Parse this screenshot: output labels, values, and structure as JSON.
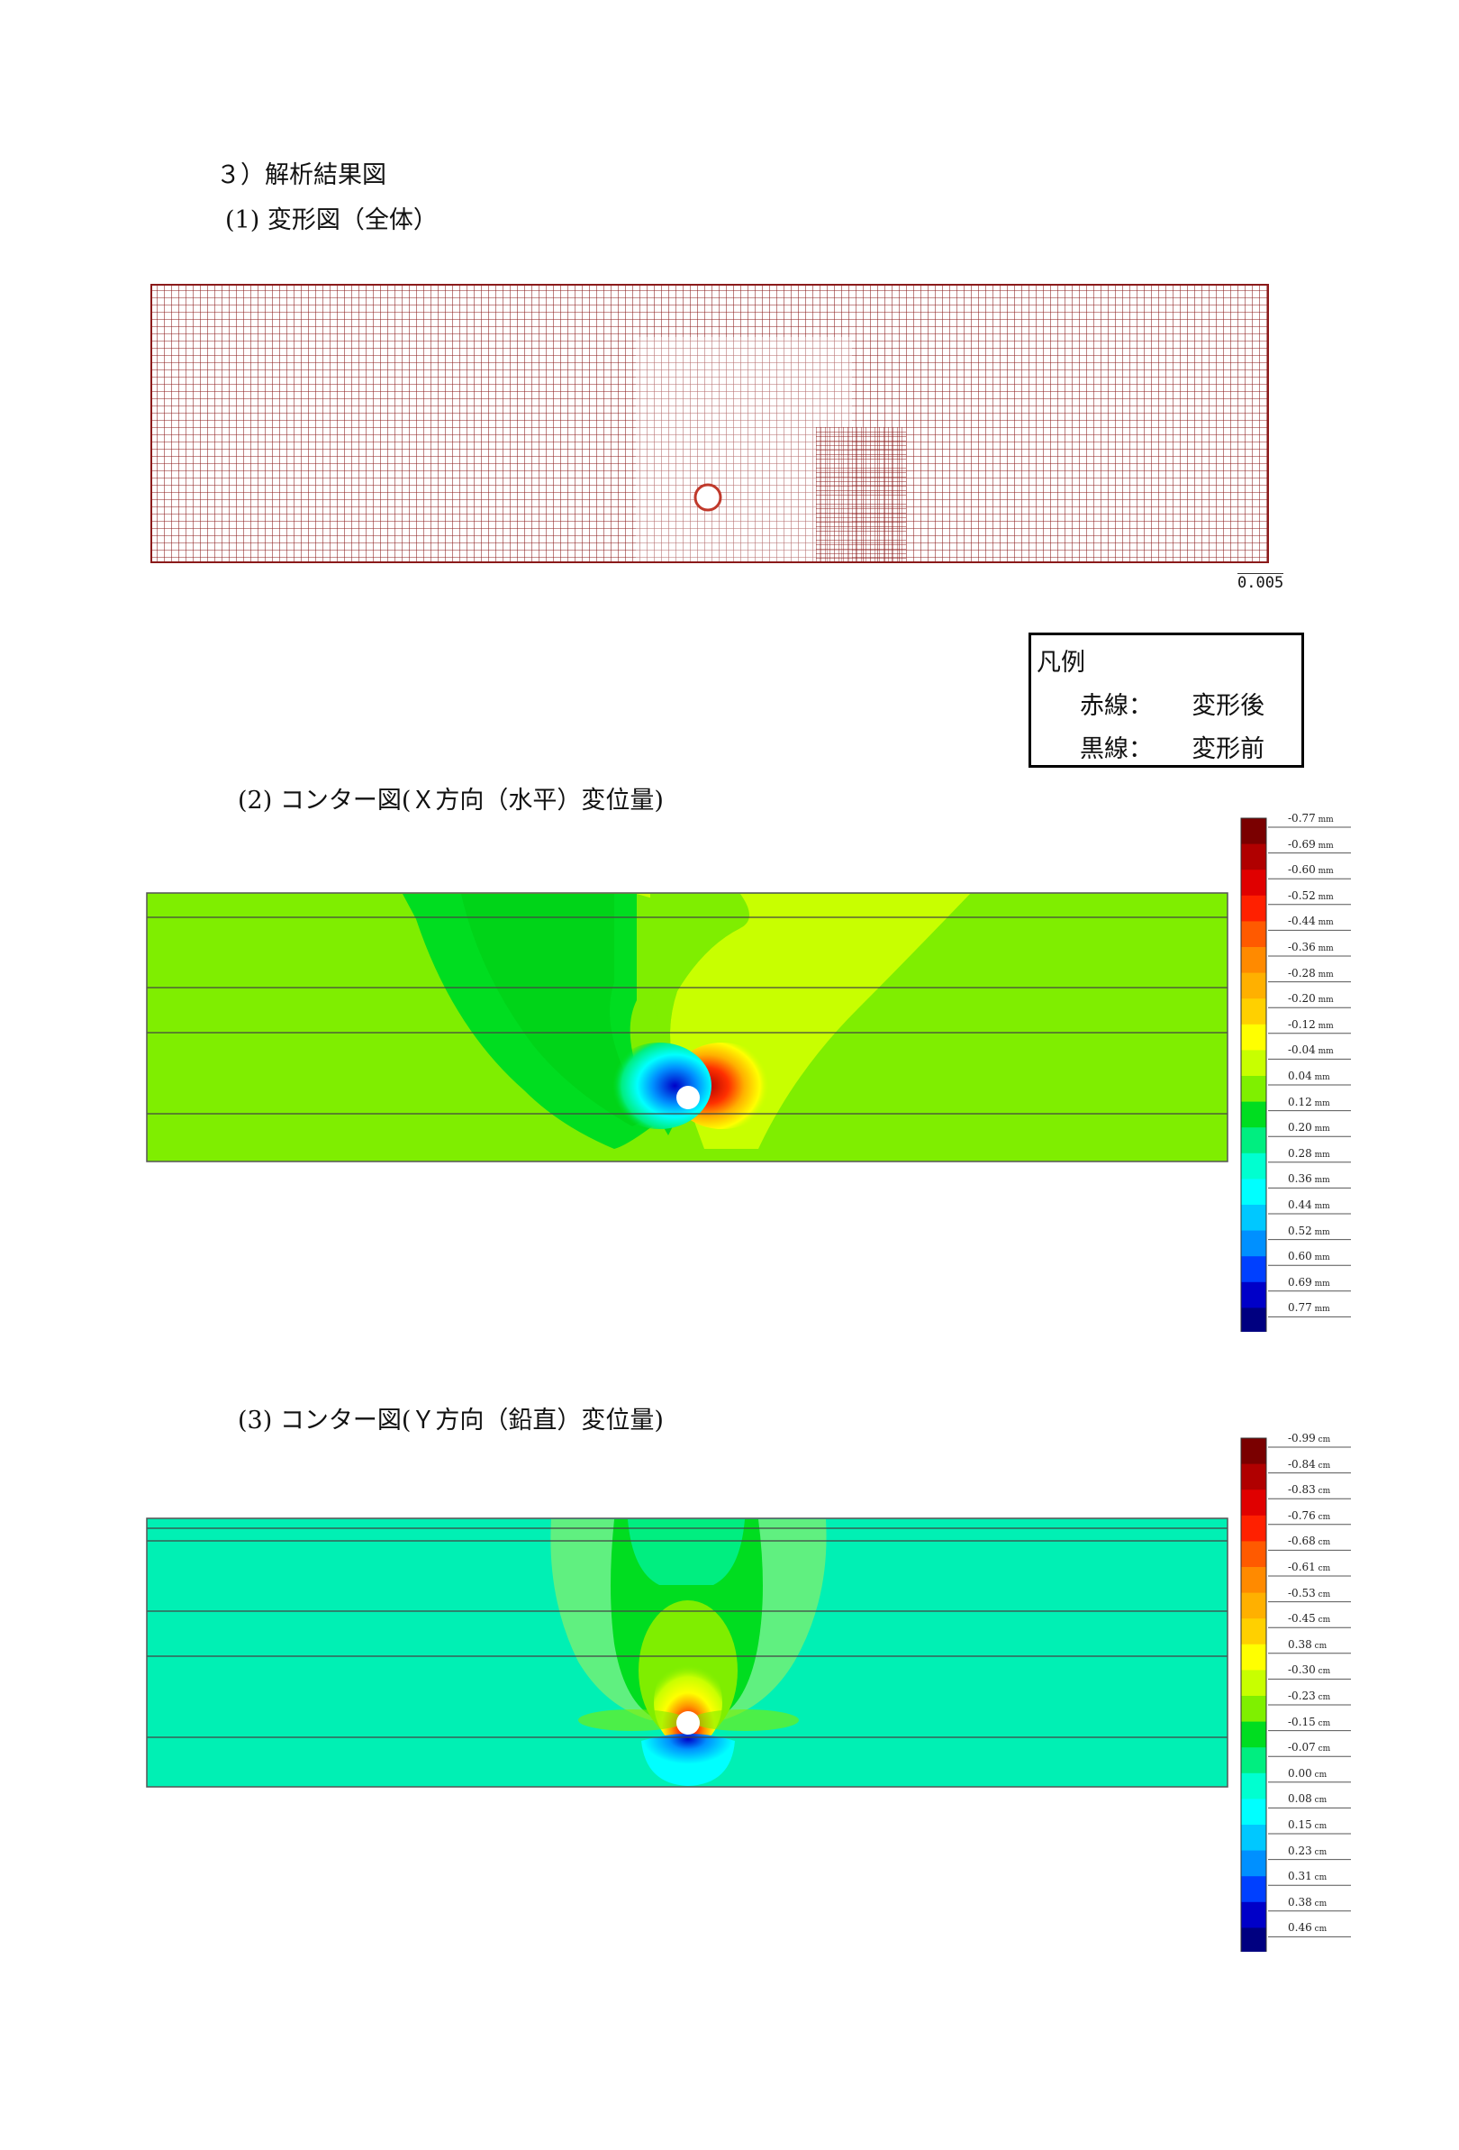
{
  "headings": {
    "section": "３）解析結果図",
    "fig1": "(1) 変形図（全体）",
    "fig2": "(2) コンター図(Ｘ方向（水平）変位量)",
    "fig3": "(3) コンター図(Ｙ方向（鉛直）変位量)"
  },
  "deformation": {
    "scale_label": "0.005",
    "line_color": "#8b1a1a"
  },
  "legend": {
    "title": "凡例",
    "rows": [
      {
        "key": "赤線：",
        "value": "変形後"
      },
      {
        "key": "黒線：",
        "value": "変形前"
      }
    ]
  },
  "colorbar_x": {
    "unit": "mm",
    "labels": [
      "-0.77",
      "-0.69",
      "-0.60",
      "-0.52",
      "-0.44",
      "-0.36",
      "-0.28",
      "-0.20",
      "-0.12",
      "-0.04",
      "0.04",
      "0.12",
      "0.20",
      "0.28",
      "0.36",
      "0.44",
      "0.52",
      "0.60",
      "0.69",
      "0.77"
    ],
    "colors": [
      "#7a0000",
      "#b00000",
      "#e00000",
      "#ff2000",
      "#ff5a00",
      "#ff8a00",
      "#ffb000",
      "#ffd000",
      "#ffff00",
      "#c8ff00",
      "#7ff000",
      "#00dd20",
      "#00ee80",
      "#00ffd0",
      "#00ffff",
      "#00c8ff",
      "#0090ff",
      "#0040ff",
      "#0000c8",
      "#000080"
    ]
  },
  "colorbar_y": {
    "unit": "cm",
    "labels": [
      "-0.99",
      "-0.84",
      "-0.83",
      "-0.76",
      "-0.68",
      "-0.61",
      "-0.53",
      "-0.45",
      "0.38",
      "-0.30",
      "-0.23",
      "-0.15",
      "-0.07",
      "0.00",
      "0.08",
      "0.15",
      "0.23",
      "0.31",
      "0.38",
      "0.46"
    ],
    "colors": [
      "#7a0000",
      "#b00000",
      "#e00000",
      "#ff2000",
      "#ff5a00",
      "#ff8a00",
      "#ffb000",
      "#ffd000",
      "#ffff00",
      "#c8ff00",
      "#7ff000",
      "#00dd20",
      "#00ee80",
      "#00ffd0",
      "#00ffff",
      "#00c8ff",
      "#0090ff",
      "#0040ff",
      "#0000c8",
      "#000080"
    ]
  },
  "contour_colors": {
    "base_green": "#7fee00",
    "dark_green": "#00dd20",
    "yellow_green": "#c8ff00",
    "mint": "#00f0b4",
    "cyan": "#00ffff"
  }
}
